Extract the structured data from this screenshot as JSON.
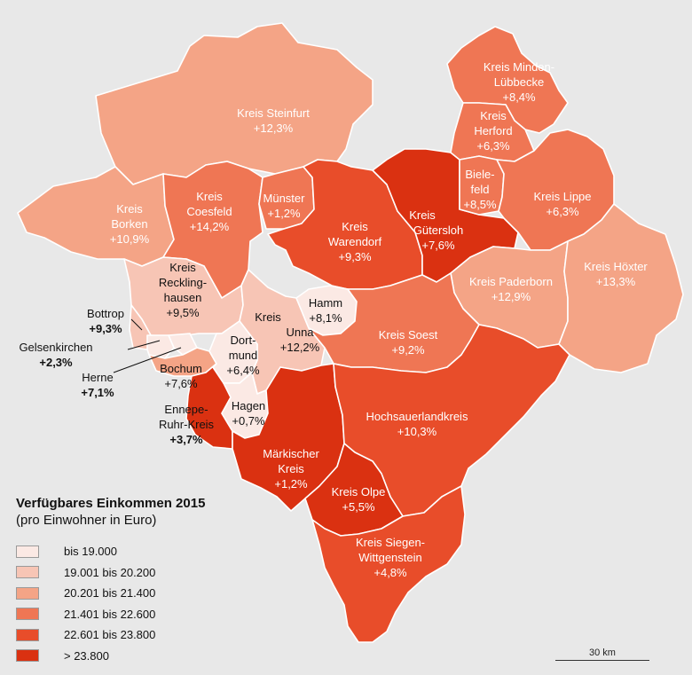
{
  "colors": {
    "bg": "#e8e8e8",
    "c1": "#fbe9e4",
    "c2": "#f7c5b5",
    "c3": "#f4a486",
    "c4": "#ef7654",
    "c5": "#e84d2a",
    "c6": "#da3111"
  },
  "legend": {
    "title": "Verfügbares Einkommen 2015",
    "subtitle": "(pro Einwohner in Euro)",
    "classes": [
      {
        "label": "bis 19.000",
        "color": "#fbe9e4"
      },
      {
        "label": "19.001 bis 20.200",
        "color": "#f7c5b5"
      },
      {
        "label": "20.201 bis 21.400",
        "color": "#f4a486"
      },
      {
        "label": "21.401 bis 22.600",
        "color": "#ef7654"
      },
      {
        "label": "22.601 bis 23.800",
        "color": "#e84d2a"
      },
      {
        "label": "> 23.800",
        "color": "#da3111"
      }
    ]
  },
  "scale": {
    "label": "30 km"
  },
  "regions": {
    "steinfurt": {
      "name": "Kreis Steinfurt",
      "change": "+12,3%"
    },
    "minden": {
      "name1": "Kreis Minden-",
      "name2": "Lübbecke",
      "change": "+8,4%"
    },
    "herford": {
      "name1": "Kreis",
      "name2": "Herford",
      "change": "+6,3%"
    },
    "borken": {
      "name1": "Kreis",
      "name2": "Borken",
      "change": "+10,9%"
    },
    "coesfeld": {
      "name1": "Kreis",
      "name2": "Coesfeld",
      "change": "+14,2%"
    },
    "muenster": {
      "name": "Münster",
      "change": "+1,2%"
    },
    "warendorf": {
      "name1": "Kreis",
      "name2": "Warendorf",
      "change": "+9,3%"
    },
    "guetersloh": {
      "name1": "Kreis",
      "name2": "Gütersloh",
      "change": "+7,6%"
    },
    "bielefeld": {
      "name1": "Biele-",
      "name2": "feld",
      "change": "+8,5%"
    },
    "lippe": {
      "name": "Kreis Lippe",
      "change": "+6,3%"
    },
    "recklinghausen": {
      "name1": "Kreis",
      "name2": "Reckling-",
      "name3": "hausen",
      "change": "+9,5%"
    },
    "paderborn": {
      "name": "Kreis Paderborn",
      "change": "+12,9%"
    },
    "hoexter": {
      "name": "Kreis Höxter",
      "change": "+13,3%"
    },
    "hamm": {
      "name": "Hamm",
      "change": "+8,1%"
    },
    "bottrop": {
      "name": "Bottrop",
      "change": "+9,3%"
    },
    "gelsenkirchen": {
      "name": "Gelsenkirchen",
      "change": "+2,3%"
    },
    "herne": {
      "name": "Herne",
      "change": "+7,1%"
    },
    "unna": {
      "name1": "Kreis",
      "name2": "Unna",
      "change": "+12,2%"
    },
    "dortmund": {
      "name1": "Dort-",
      "name2": "mund",
      "change": "+6,4%"
    },
    "soest": {
      "name": "Kreis Soest",
      "change": "+9,2%"
    },
    "bochum": {
      "name": "Bochum",
      "change": "+7,6%"
    },
    "ennepe": {
      "name1": "Ennepe-",
      "name2": "Ruhr-Kreis",
      "change": "+3,7%"
    },
    "hagen": {
      "name": "Hagen",
      "change": "+0,7%"
    },
    "hochsauerland": {
      "name": "Hochsauerlandkreis",
      "change": "+10,3%"
    },
    "maerkisch": {
      "name1": "Märkischer",
      "name2": "Kreis",
      "change": "+1,2%"
    },
    "olpe": {
      "name": "Kreis Olpe",
      "change": "+5,5%"
    },
    "siegen": {
      "name1": "Kreis Siegen-",
      "name2": "Wittgenstein",
      "change": "+4,8%"
    }
  }
}
